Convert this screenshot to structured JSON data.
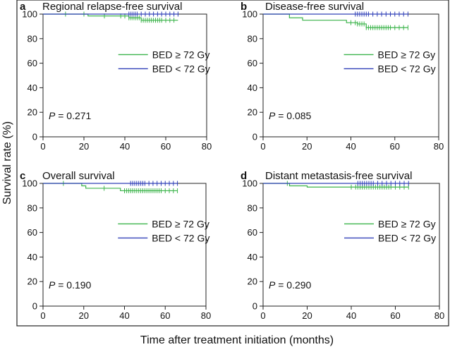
{
  "figure": {
    "ylabel": "Survival rate (%)",
    "xlabel": "Time after treatment initiation (months)"
  },
  "colors": {
    "high_bed": "#3cb44b",
    "low_bed": "#3040b8",
    "axis": "#222222"
  },
  "chart_data": [
    {
      "type": "line",
      "panel_letter": "a",
      "title": "Regional relapse-free survival",
      "p_label": "P",
      "p_value": "= 0.271",
      "xlim": [
        0,
        80
      ],
      "ylim": [
        0,
        100
      ],
      "xticks": [
        0,
        20,
        40,
        60,
        80
      ],
      "yticks": [
        0,
        20,
        40,
        60,
        80,
        100
      ],
      "legend_position": "center-right",
      "series": [
        {
          "name": "BED ≥ 72 Gy",
          "color_key": "high_bed",
          "steps": [
            [
              0,
              100
            ],
            [
              22,
              98.5
            ],
            [
              42,
              97
            ],
            [
              48,
              95
            ],
            [
              66,
              95
            ]
          ],
          "censor": [
            11,
            20,
            30,
            38,
            40,
            42,
            43,
            44,
            45,
            46,
            47,
            48,
            49,
            50,
            51,
            52,
            53,
            54,
            55,
            56,
            57,
            58,
            60,
            62,
            64
          ]
        },
        {
          "name": "BED < 72 Gy",
          "color_key": "low_bed",
          "steps": [
            [
              0,
              100
            ],
            [
              66,
              100
            ]
          ],
          "censor": [
            42,
            43,
            44,
            45,
            46,
            48,
            50,
            52,
            54,
            56,
            58,
            60,
            62,
            64,
            66
          ]
        }
      ]
    },
    {
      "type": "line",
      "panel_letter": "b",
      "title": "Disease-free survival",
      "p_label": "P",
      "p_value": "= 0.085",
      "xlim": [
        0,
        80
      ],
      "ylim": [
        0,
        100
      ],
      "xticks": [
        0,
        20,
        40,
        60,
        80
      ],
      "yticks": [
        0,
        20,
        40,
        60,
        80,
        100
      ],
      "legend_position": "center-right",
      "series": [
        {
          "name": "BED ≥ 72 Gy",
          "color_key": "high_bed",
          "steps": [
            [
              0,
              100
            ],
            [
              12,
              97
            ],
            [
              18,
              95
            ],
            [
              38,
              93
            ],
            [
              43,
              92
            ],
            [
              47,
              89
            ],
            [
              66,
              89
            ]
          ],
          "censor": [
            40,
            42,
            43,
            44,
            45,
            46,
            47,
            48,
            49,
            50,
            51,
            52,
            53,
            54,
            55,
            56,
            57,
            58,
            60,
            62,
            64,
            66
          ]
        },
        {
          "name": "BED < 72 Gy",
          "color_key": "low_bed",
          "steps": [
            [
              0,
              100
            ],
            [
              66,
              100
            ]
          ],
          "censor": [
            42,
            43,
            44,
            45,
            46,
            47,
            48,
            50,
            52,
            54,
            56,
            58,
            60,
            62,
            64,
            66
          ]
        }
      ]
    },
    {
      "type": "line",
      "panel_letter": "c",
      "title": "Overall survival",
      "p_label": "P",
      "p_value": "= 0.190",
      "xlim": [
        0,
        80
      ],
      "ylim": [
        0,
        100
      ],
      "xticks": [
        0,
        20,
        40,
        60,
        80
      ],
      "yticks": [
        0,
        20,
        40,
        60,
        80,
        100
      ],
      "legend_position": "center-right",
      "series": [
        {
          "name": "BED ≥ 72 Gy",
          "color_key": "high_bed",
          "steps": [
            [
              0,
              100
            ],
            [
              19,
              98
            ],
            [
              21,
              96
            ],
            [
              38,
              94
            ],
            [
              66,
              94
            ]
          ],
          "censor": [
            10,
            30,
            40,
            41,
            42,
            43,
            44,
            45,
            46,
            47,
            48,
            49,
            50,
            51,
            52,
            53,
            54,
            55,
            56,
            57,
            58,
            60,
            62,
            64,
            66
          ]
        },
        {
          "name": "BED < 72 Gy",
          "color_key": "low_bed",
          "steps": [
            [
              0,
              100
            ],
            [
              66,
              100
            ]
          ],
          "censor": [
            43,
            44,
            45,
            46,
            47,
            48,
            49,
            50,
            52,
            54,
            56,
            58,
            60,
            62,
            64,
            66
          ]
        }
      ]
    },
    {
      "type": "line",
      "panel_letter": "d",
      "title": "Distant metastasis-free survival",
      "p_label": "P",
      "p_value": "= 0.290",
      "xlim": [
        0,
        80
      ],
      "ylim": [
        0,
        100
      ],
      "xticks": [
        0,
        20,
        40,
        60,
        80
      ],
      "yticks": [
        0,
        20,
        40,
        60,
        80,
        100
      ],
      "legend_position": "center-right",
      "series": [
        {
          "name": "BED ≥ 72 Gy",
          "color_key": "high_bed",
          "steps": [
            [
              0,
              100
            ],
            [
              12,
              98
            ],
            [
              20,
              97
            ],
            [
              66,
              97
            ]
          ],
          "censor": [
            11,
            40,
            42,
            43,
            44,
            45,
            46,
            47,
            48,
            49,
            50,
            51,
            52,
            53,
            54,
            55,
            56,
            57,
            58,
            60,
            62,
            64,
            66
          ]
        },
        {
          "name": "BED < 72 Gy",
          "color_key": "low_bed",
          "steps": [
            [
              0,
              100
            ],
            [
              66,
              100
            ]
          ],
          "censor": [
            43,
            44,
            45,
            46,
            47,
            48,
            49,
            50,
            52,
            54,
            56,
            58,
            60,
            62,
            64,
            66
          ]
        }
      ]
    }
  ]
}
